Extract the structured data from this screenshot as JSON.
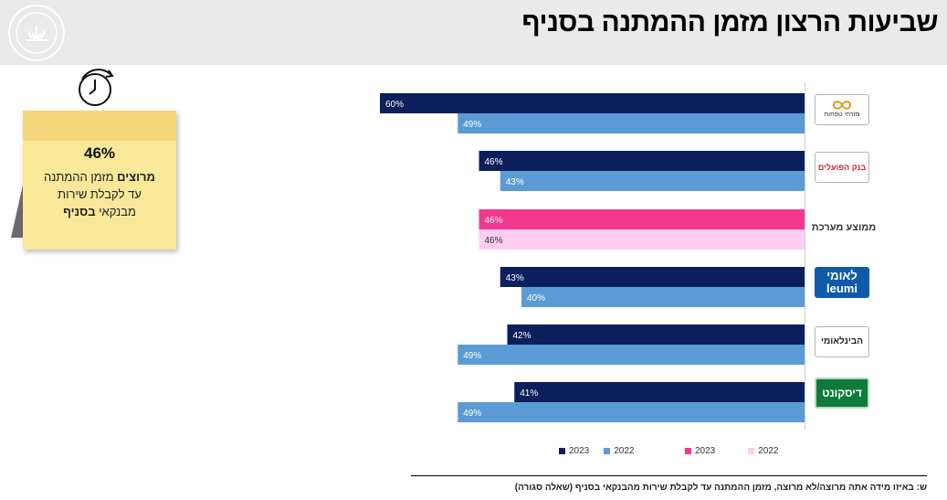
{
  "header": {
    "title": "שביעות הרצון מזמן ההמתנה בסניף",
    "seal_text": "BANK OF ISRAEL • בנק ישראל"
  },
  "callout": {
    "value": "46%",
    "line1_bold": "מרוצים",
    "line1_rest": " מזמן ההמתנה",
    "line2": "עד לקבלת שירות",
    "line3_rest": "מבנקאי ",
    "line3_bold": "בסניף"
  },
  "logos": {
    "mizrahi": "מזרחי טפחות",
    "hapoalim": "בנק הפועלים",
    "average": "ממוצע מערכת",
    "leumi_he": "לאומי",
    "leumi_en": "leumi",
    "fibi": "הבינלאומי",
    "discount": "דיסקונט"
  },
  "colors": {
    "bank_2023": "#0a1f5c",
    "bank_2022": "#5b9bd5",
    "avg_2023": "#f0398f",
    "avg_2022": "#ffccf2"
  },
  "chart_data": {
    "type": "bar",
    "orientation": "horizontal",
    "categories": [
      "מזרחי טפחות",
      "בנק הפועלים",
      "ממוצע מערכת",
      "לאומי",
      "הבינלאומי",
      "דיסקונט"
    ],
    "series": [
      {
        "name": "2023",
        "values": [
          60,
          46,
          46,
          43,
          42,
          41
        ]
      },
      {
        "name": "2022",
        "values": [
          49,
          43,
          46,
          40,
          49,
          49
        ]
      }
    ],
    "value_labels_2023": [
      "60%",
      "46%",
      "46%",
      "43%",
      "42%",
      "41%"
    ],
    "value_labels_2022": [
      "49%",
      "43%",
      "46%",
      "40%",
      "49%",
      "49%"
    ],
    "xlim": [
      0,
      60
    ],
    "grid": false,
    "legend": [
      {
        "label": "2023",
        "group": "banks"
      },
      {
        "label": "2022",
        "group": "banks"
      },
      {
        "label": "2023",
        "group": "average"
      },
      {
        "label": "2022",
        "group": "average"
      }
    ]
  },
  "footer": {
    "question": "ש: באיזו מידה אתה מרוצה/לא מרוצה, מזמן ההמתנה עד לקבלת שירות מהבנקאי בסניף (שאלה סגורה)"
  }
}
